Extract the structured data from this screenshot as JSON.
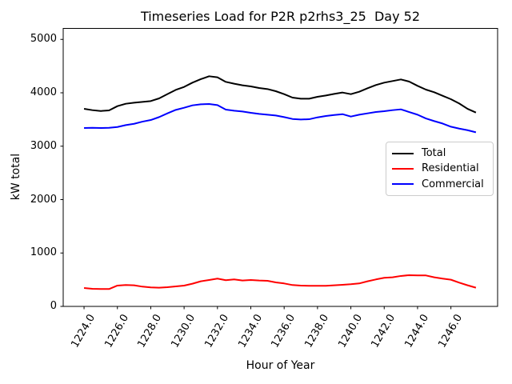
{
  "figure": {
    "title": "Timeseries Load for P2R p2rhs3_25  Day 52",
    "xlabel": "Hour of Year",
    "ylabel": "kW total",
    "background_color": "#ffffff",
    "spine_color": "#000000",
    "legend_border_color": "#cccccc"
  },
  "chart_data": {
    "type": "line",
    "title": "Timeseries Load for P2R p2rhs3_25  Day 52",
    "xlabel": "Hour of Year",
    "ylabel": "kW total",
    "grid": false,
    "legend_position": "center right",
    "xlim": [
      1222.75,
      1248.8
    ],
    "ylim": [
      0,
      5206
    ],
    "xticks": [
      1224,
      1226,
      1228,
      1230,
      1232,
      1234,
      1236,
      1238,
      1240,
      1242,
      1244,
      1246
    ],
    "xtick_labels": [
      "1224.0",
      "1226.0",
      "1228.0",
      "1230.0",
      "1232.0",
      "1234.0",
      "1236.0",
      "1238.0",
      "1240.0",
      "1242.0",
      "1244.0",
      "1246.0"
    ],
    "xtick_rotation_deg": 60,
    "yticks": [
      0,
      1000,
      2000,
      3000,
      4000,
      5000
    ],
    "ytick_labels": [
      "0",
      "1000",
      "2000",
      "3000",
      "4000",
      "5000"
    ],
    "x": [
      1224.0,
      1224.5,
      1225.0,
      1225.5,
      1226.0,
      1226.5,
      1227.0,
      1227.5,
      1228.0,
      1228.5,
      1229.0,
      1229.5,
      1230.0,
      1230.5,
      1231.0,
      1231.5,
      1232.0,
      1232.5,
      1233.0,
      1233.5,
      1234.0,
      1234.5,
      1235.0,
      1235.5,
      1236.0,
      1236.5,
      1237.0,
      1237.5,
      1238.0,
      1238.5,
      1239.0,
      1239.5,
      1240.0,
      1240.5,
      1241.0,
      1241.5,
      1242.0,
      1242.5,
      1243.0,
      1243.5,
      1244.0,
      1244.5,
      1245.0,
      1245.5,
      1246.0,
      1246.5,
      1247.0,
      1247.5
    ],
    "series": [
      {
        "name": "Total",
        "color": "#000000",
        "values": [
          3700,
          3675,
          3660,
          3670,
          3750,
          3795,
          3815,
          3830,
          3845,
          3895,
          3975,
          4055,
          4110,
          4190,
          4255,
          4310,
          4290,
          4205,
          4170,
          4140,
          4120,
          4090,
          4070,
          4030,
          3975,
          3910,
          3890,
          3890,
          3925,
          3950,
          3980,
          4005,
          3975,
          4020,
          4085,
          4145,
          4190,
          4220,
          4250,
          4210,
          4130,
          4060,
          4010,
          3945,
          3880,
          3800,
          3700,
          3630
        ]
      },
      {
        "name": "Residential",
        "color": "#ff0000",
        "values": [
          345,
          330,
          325,
          325,
          390,
          400,
          395,
          370,
          355,
          350,
          360,
          375,
          390,
          425,
          470,
          495,
          520,
          490,
          505,
          485,
          495,
          485,
          480,
          450,
          430,
          400,
          390,
          385,
          385,
          385,
          395,
          405,
          415,
          430,
          470,
          505,
          535,
          545,
          570,
          585,
          580,
          580,
          545,
          520,
          500,
          445,
          395,
          350
        ]
      },
      {
        "name": "Commercial",
        "color": "#0000ff",
        "values": [
          3340,
          3345,
          3340,
          3345,
          3360,
          3395,
          3420,
          3460,
          3490,
          3545,
          3615,
          3680,
          3720,
          3765,
          3785,
          3790,
          3770,
          3685,
          3665,
          3650,
          3625,
          3605,
          3590,
          3575,
          3545,
          3510,
          3500,
          3505,
          3540,
          3565,
          3585,
          3600,
          3555,
          3590,
          3615,
          3640,
          3655,
          3675,
          3690,
          3640,
          3590,
          3520,
          3470,
          3425,
          3365,
          3330,
          3300,
          3260
        ]
      }
    ]
  }
}
